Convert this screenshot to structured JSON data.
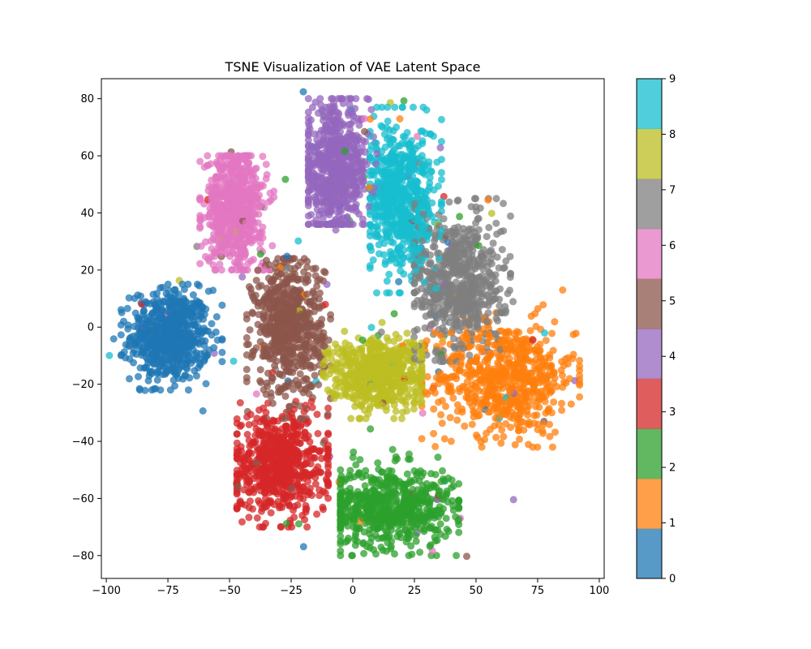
{
  "chart_data": {
    "type": "scatter",
    "title": "TSNE Visualization of VAE Latent Space",
    "xlabel": "",
    "ylabel": "",
    "xlim": [
      -102,
      102
    ],
    "ylim": [
      -88,
      87
    ],
    "xticks": [
      -100,
      -75,
      -50,
      -25,
      0,
      25,
      50,
      75,
      100
    ],
    "yticks": [
      -80,
      -60,
      -40,
      -20,
      0,
      20,
      40,
      60,
      80
    ],
    "grid": false,
    "colorbar": {
      "colormap": "tab10",
      "range": [
        0,
        9
      ],
      "ticks": [
        0,
        1,
        2,
        3,
        4,
        5,
        6,
        7,
        8,
        9
      ],
      "colors": [
        "#1f77b4",
        "#ff7f0e",
        "#2ca02c",
        "#d62728",
        "#9467bd",
        "#8c564b",
        "#e377c2",
        "#7f7f7f",
        "#bcbd22",
        "#17becf"
      ]
    },
    "point_alpha": 0.75,
    "clusters": [
      {
        "label": 0,
        "color": "#1f77b4",
        "center": [
          -74,
          -3
        ],
        "spread": [
          8,
          8
        ],
        "x_range": [
          -94,
          -53
        ],
        "y_range": [
          -22,
          15
        ]
      },
      {
        "label": 1,
        "color": "#ff7f0e",
        "center": [
          62,
          -18
        ],
        "spread": [
          14,
          10
        ],
        "x_range": [
          28,
          92
        ],
        "y_range": [
          -42,
          13
        ]
      },
      {
        "label": 2,
        "color": "#2ca02c",
        "center": [
          15,
          -63
        ],
        "spread": [
          13,
          7
        ],
        "x_range": [
          -5,
          43
        ],
        "y_range": [
          -80,
          -38
        ]
      },
      {
        "label": 3,
        "color": "#d62728",
        "center": [
          -30,
          -48
        ],
        "spread": [
          10,
          9
        ],
        "x_range": [
          -47,
          -10
        ],
        "y_range": [
          -70,
          -26
        ]
      },
      {
        "label": 4,
        "color": "#9467bd",
        "center": [
          -7,
          55
        ],
        "spread": [
          7,
          11
        ],
        "x_range": [
          -18,
          14
        ],
        "y_range": [
          36,
          80
        ]
      },
      {
        "label": 5,
        "color": "#8c564b",
        "center": [
          -26,
          0
        ],
        "spread": [
          7,
          12
        ],
        "x_range": [
          -43,
          -9
        ],
        "y_range": [
          -32,
          24
        ]
      },
      {
        "label": 6,
        "color": "#e377c2",
        "center": [
          -48,
          42
        ],
        "spread": [
          6,
          10
        ],
        "x_range": [
          -62,
          -32
        ],
        "y_range": [
          20,
          60
        ]
      },
      {
        "label": 7,
        "color": "#7f7f7f",
        "center": [
          43,
          15
        ],
        "spread": [
          9,
          13
        ],
        "x_range": [
          25,
          64
        ],
        "y_range": [
          -12,
          45
        ]
      },
      {
        "label": 8,
        "color": "#bcbd22",
        "center": [
          10,
          -16
        ],
        "spread": [
          10,
          6
        ],
        "x_range": [
          -12,
          28
        ],
        "y_range": [
          -32,
          2
        ]
      },
      {
        "label": 9,
        "color": "#17becf",
        "center": [
          20,
          45
        ],
        "spread": [
          7,
          13
        ],
        "x_range": [
          7,
          36
        ],
        "y_range": [
          12,
          77
        ]
      }
    ]
  }
}
